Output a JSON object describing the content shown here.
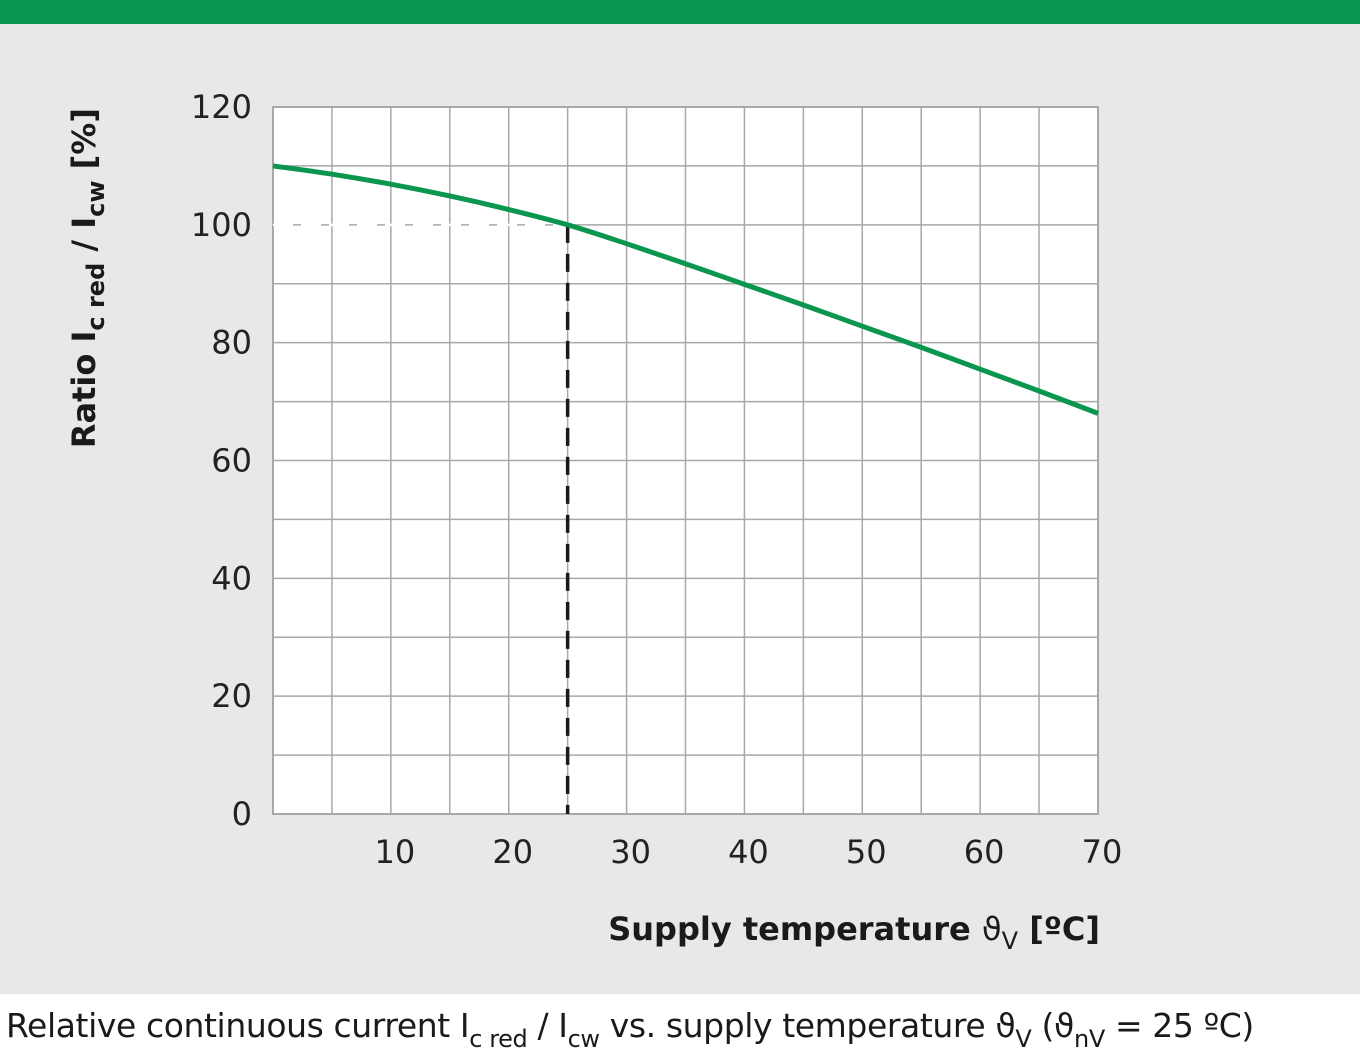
{
  "colors": {
    "brand_bar": "#0b9650",
    "panel_background": "#e8e8e8",
    "plot_background": "#ffffff",
    "grid": "#a8a8a8",
    "curve": "#0b9650",
    "reference_line": "#1a1a1a"
  },
  "chart_data": {
    "type": "line",
    "title": "",
    "xlabel": {
      "main": "Supply temperature ",
      "symbol": "ϑ",
      "subscript": "V",
      "unit": " [ºC]"
    },
    "ylabel": {
      "part1": "Ratio I",
      "sub1": "c red",
      "part2": " / I",
      "sub2": "cw",
      "unit": " [%]"
    },
    "xlim": [
      0,
      70
    ],
    "ylim": [
      0,
      120
    ],
    "x_grid_step": 5,
    "y_grid_step": 10,
    "x_tick_labels": [
      "10",
      "20",
      "30",
      "40",
      "50",
      "60",
      "70"
    ],
    "y_tick_labels": [
      "0",
      "20",
      "40",
      "60",
      "80",
      "100",
      "120"
    ],
    "grid": true,
    "legend": "none",
    "series": [
      {
        "x": [
          0,
          5,
          10,
          15,
          20,
          25,
          30,
          35,
          40,
          45,
          50,
          55,
          60,
          65,
          70
        ],
        "y": [
          110,
          108.6,
          106.9,
          104.9,
          102.6,
          100,
          96.8,
          93.4,
          89.9,
          86.4,
          82.8,
          79.2,
          75.5,
          71.8,
          68
        ]
      }
    ],
    "reference_point": {
      "x": 25,
      "y": 100
    }
  },
  "caption": {
    "part1": "Relative continuous current I",
    "sub1": "c red",
    "part2": " / I",
    "sub2": "cw",
    "part3": " vs. supply temperature ϑ",
    "sub3": "V",
    "part4": " (ϑ",
    "sub4": "nV",
    "part5": " = 25 ºC)"
  }
}
